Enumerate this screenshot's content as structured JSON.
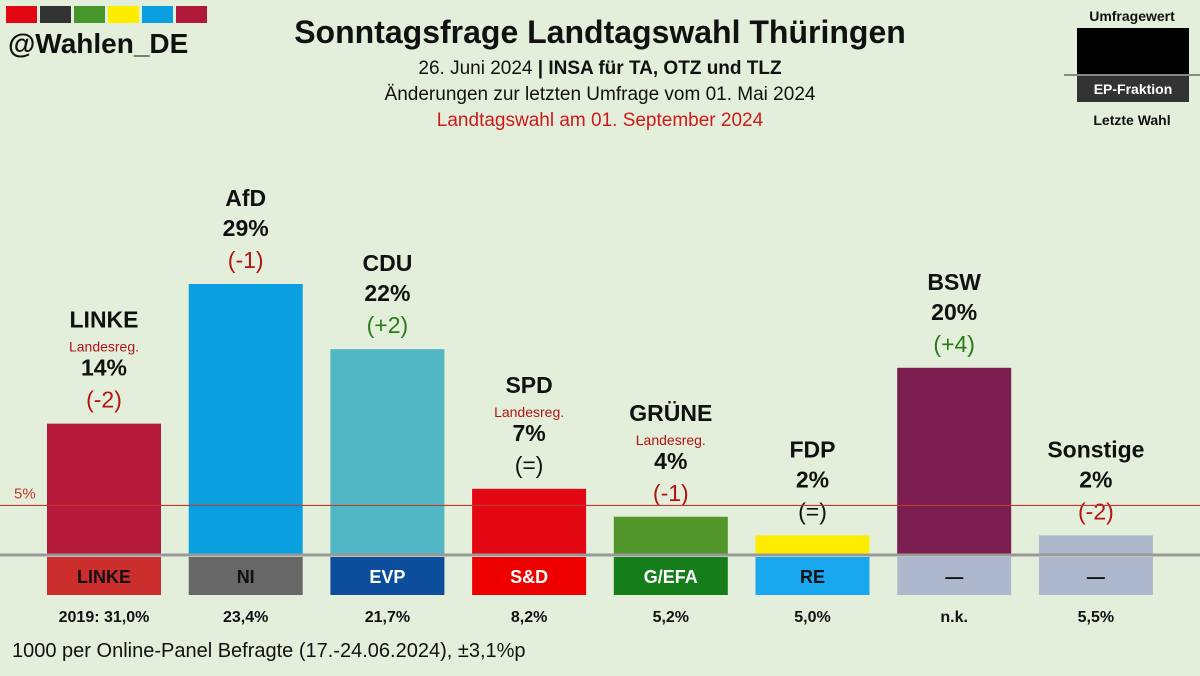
{
  "header": {
    "handle": "@Wahlen_DE",
    "title": "Sonntagsfrage Landtagswahl Thüringen",
    "date": "26. Juni 2024",
    "pollster": "INSA für TA, OTZ und TLZ",
    "changes_note": "Änderungen zur letzten Umfrage vom 01. Mai 2024",
    "election_note": "Landtagswahl am 01. September 2024",
    "swatch_colors": [
      "#e30613",
      "#333333",
      "#46962b",
      "#ffed00",
      "#0aa0e0",
      "#b0193a"
    ]
  },
  "legend": {
    "top_label": "Umfragewert",
    "middle_label": "EP-Fraktion",
    "bottom_label": "Letzte Wahl"
  },
  "chart_data": {
    "type": "bar",
    "ylim": [
      0,
      30
    ],
    "threshold": {
      "value": 5,
      "label": "5%",
      "color": "#c0392b"
    },
    "categories": [
      "LINKE",
      "AfD",
      "CDU",
      "SPD",
      "GRÜNE",
      "FDP",
      "BSW",
      "Sonstige"
    ],
    "values": [
      14,
      29,
      22,
      7,
      4,
      2,
      20,
      2
    ],
    "value_labels": [
      "14%",
      "29%",
      "22%",
      "7%",
      "4%",
      "2%",
      "20%",
      "2%"
    ],
    "changes": [
      "-2",
      "-1",
      "+2",
      "=",
      "-1",
      "=",
      "+4",
      "-2"
    ],
    "change_labels": [
      "(-2)",
      "(-1)",
      "(+2)",
      "(=)",
      "(-1)",
      "(=)",
      "(+4)",
      "(-2)"
    ],
    "notes": [
      "Landesreg.",
      "",
      "",
      "Landesreg.",
      "Landesreg.",
      "",
      "",
      ""
    ],
    "ep_groups": [
      "LINKE",
      "NI",
      "EVP",
      "S&D",
      "G/EFA",
      "RE",
      "—",
      "—"
    ],
    "last_election": [
      "2019: 31,0%",
      "23,4%",
      "21,7%",
      "8,2%",
      "5,2%",
      "5,0%",
      "n.k.",
      "5,5%"
    ],
    "colors": [
      "#b51a3a",
      "#0aa0e0",
      "#52b7c4",
      "#e30613",
      "#52962b",
      "#ffed00",
      "#7a1f4f",
      "#adb8cc"
    ],
    "ep_colors": [
      "#cc2e2e",
      "#676767",
      "#0c4e9c",
      "#ee0000",
      "#167d1b",
      "#19a7f0",
      "#adb8cc",
      "#adb8cc"
    ],
    "ep_text_colors": [
      "#111111",
      "#111111",
      "#ffffff",
      "#ffffff",
      "#ffffff",
      "#111111",
      "#111111",
      "#111111"
    ],
    "change_colors": {
      "plus": "#2a7a1a",
      "minus": "#b01515",
      "equal": "#111111"
    }
  },
  "footer": {
    "text": "1000 per Online-Panel Befragte (17.-24.06.2024), ±3,1%p"
  }
}
